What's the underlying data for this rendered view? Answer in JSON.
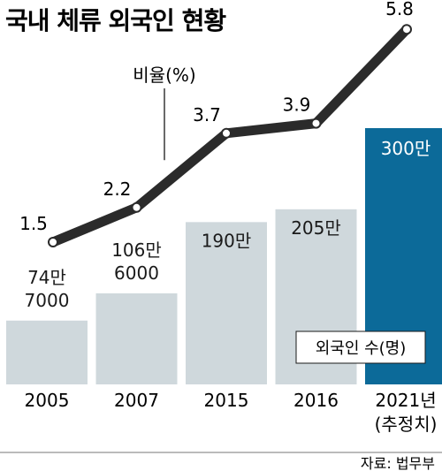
{
  "title": "국내 체류 외국인 현황",
  "source": "자료: 법무부",
  "chart_data": {
    "type": "bar",
    "categories": [
      "2005",
      "2007",
      "2015",
      "2016",
      "2021년\n(추정치)"
    ],
    "category_lines": [
      [
        "2005"
      ],
      [
        "2007"
      ],
      [
        "2015"
      ],
      [
        "2016"
      ],
      [
        "2021년",
        "(추정치)"
      ]
    ],
    "series": [
      {
        "name": "외국인 수(명)",
        "values": [
          747000,
          1066000,
          1900000,
          2050000,
          3000000
        ],
        "value_labels": [
          [
            "74만",
            "7000"
          ],
          [
            "106만",
            "6000"
          ],
          [
            "190만"
          ],
          [
            "205만"
          ],
          [
            "300만"
          ]
        ]
      },
      {
        "name": "비율(%)",
        "type": "line",
        "values": [
          1.5,
          2.2,
          3.7,
          3.9,
          5.8
        ],
        "value_labels": [
          "1.5",
          "2.2",
          "3.7",
          "3.9",
          "5.8"
        ]
      }
    ],
    "colors": {
      "bar": "#cfd8dc",
      "bar_highlight": "#0c6a99",
      "line": "#2b2b2b",
      "highlight_text": "#ffffff"
    },
    "highlight_index": 4
  }
}
